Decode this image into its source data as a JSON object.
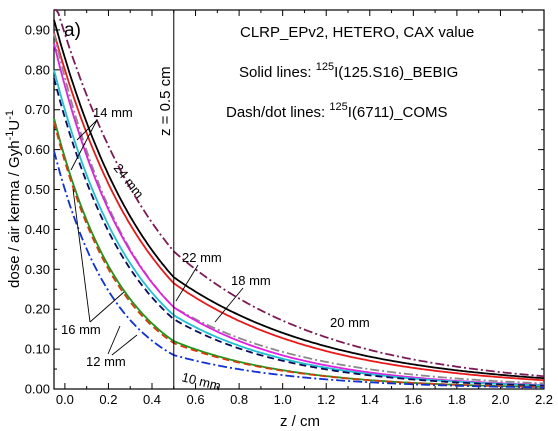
{
  "chart_data": {
    "type": "line",
    "panel_label": "a)",
    "legend_lines": {
      "line1": "CLRP_EPv2, HETERO, CAX value",
      "line2_prefix": "Solid lines: ",
      "line2_sup": "125",
      "line2_suffix": "I(125.S16)_BEBIG",
      "line3_prefix": "Dash/dot lines: ",
      "line3_sup": "125",
      "line3_suffix": "I(6711)_COMS"
    },
    "xlabel": "z / cm",
    "ylabel": {
      "main": "dose / air kerma / Gyh",
      "sup1": "-1",
      "mid": "U",
      "sup2": "-1"
    },
    "xlim": [
      -0.05,
      2.2
    ],
    "ylim": [
      0.0,
      0.95
    ],
    "xticks": [
      "0.0",
      "0.2",
      "0.4",
      "0.6",
      "0.8",
      "1.0",
      "1.2",
      "1.4",
      "1.6",
      "1.8",
      "2.0",
      "2.2"
    ],
    "yticks": [
      "0.00",
      "0.10",
      "0.20",
      "0.30",
      "0.40",
      "0.50",
      "0.60",
      "0.70",
      "0.80",
      "0.90"
    ],
    "vertical_line": {
      "x": 0.5,
      "label": "z = 0.5 cm"
    },
    "series": [
      {
        "size_mm": 24,
        "source": "BEBIG",
        "style": "solid",
        "color": "#000000",
        "y0": 0.83,
        "y_at_0_5": 0.28,
        "y_at_2_2": 0.027
      },
      {
        "size_mm": 22,
        "source": "BEBIG",
        "style": "solid",
        "color": "#e8191a",
        "y0": 0.8,
        "y_at_0_5": 0.265,
        "y_at_2_2": 0.022
      },
      {
        "size_mm": 20,
        "source": "COMS",
        "style": "dashdot",
        "color": "#7b1a55",
        "y0": 0.89,
        "y_at_0_5": 0.345,
        "y_at_2_2": 0.032
      },
      {
        "size_mm": 18,
        "source": "COMS",
        "style": "dashdot",
        "color": "#8a8a8a",
        "y0": 0.78,
        "y_at_0_5": 0.205,
        "y_at_2_2": 0.014
      },
      {
        "size_mm": 16,
        "source": "BEBIG",
        "style": "solid",
        "color": "#e020e0",
        "y0": 0.76,
        "y_at_0_5": 0.205,
        "y_at_2_2": 0.01
      },
      {
        "size_mm": 16,
        "source": "BEBIG",
        "style": "solid",
        "color": "#20c0d0",
        "y0": 0.7,
        "y_at_0_5": 0.185,
        "y_at_2_2": 0.009
      },
      {
        "size_mm": 14,
        "source": "COMS",
        "style": "dashed",
        "color": "#0a0a5a",
        "y0": 0.68,
        "y_at_0_5": 0.175,
        "y_at_2_2": 0.008
      },
      {
        "size_mm": 12,
        "source": "BEBIG",
        "style": "solid",
        "color": "#1a9a1a",
        "y0": 0.58,
        "y_at_0_5": 0.12,
        "y_at_2_2": 0.005
      },
      {
        "size_mm": 12,
        "source": "COMS",
        "style": "dashed",
        "color": "#d83a10",
        "y0": 0.57,
        "y_at_0_5": 0.115,
        "y_at_2_2": 0.005
      },
      {
        "size_mm": 10,
        "source": "COMS",
        "style": "dashdot",
        "color": "#1030d0",
        "y0": 0.5,
        "y_at_0_5": 0.085,
        "y_at_2_2": 0.004
      }
    ],
    "annotations": [
      {
        "text": "24 mm",
        "rotated": true
      },
      {
        "text": "22 mm"
      },
      {
        "text": "20 mm"
      },
      {
        "text": "18 mm"
      },
      {
        "text": "16 mm"
      },
      {
        "text": "14 mm"
      },
      {
        "text": "12 mm"
      },
      {
        "text": "10 mm"
      }
    ]
  }
}
